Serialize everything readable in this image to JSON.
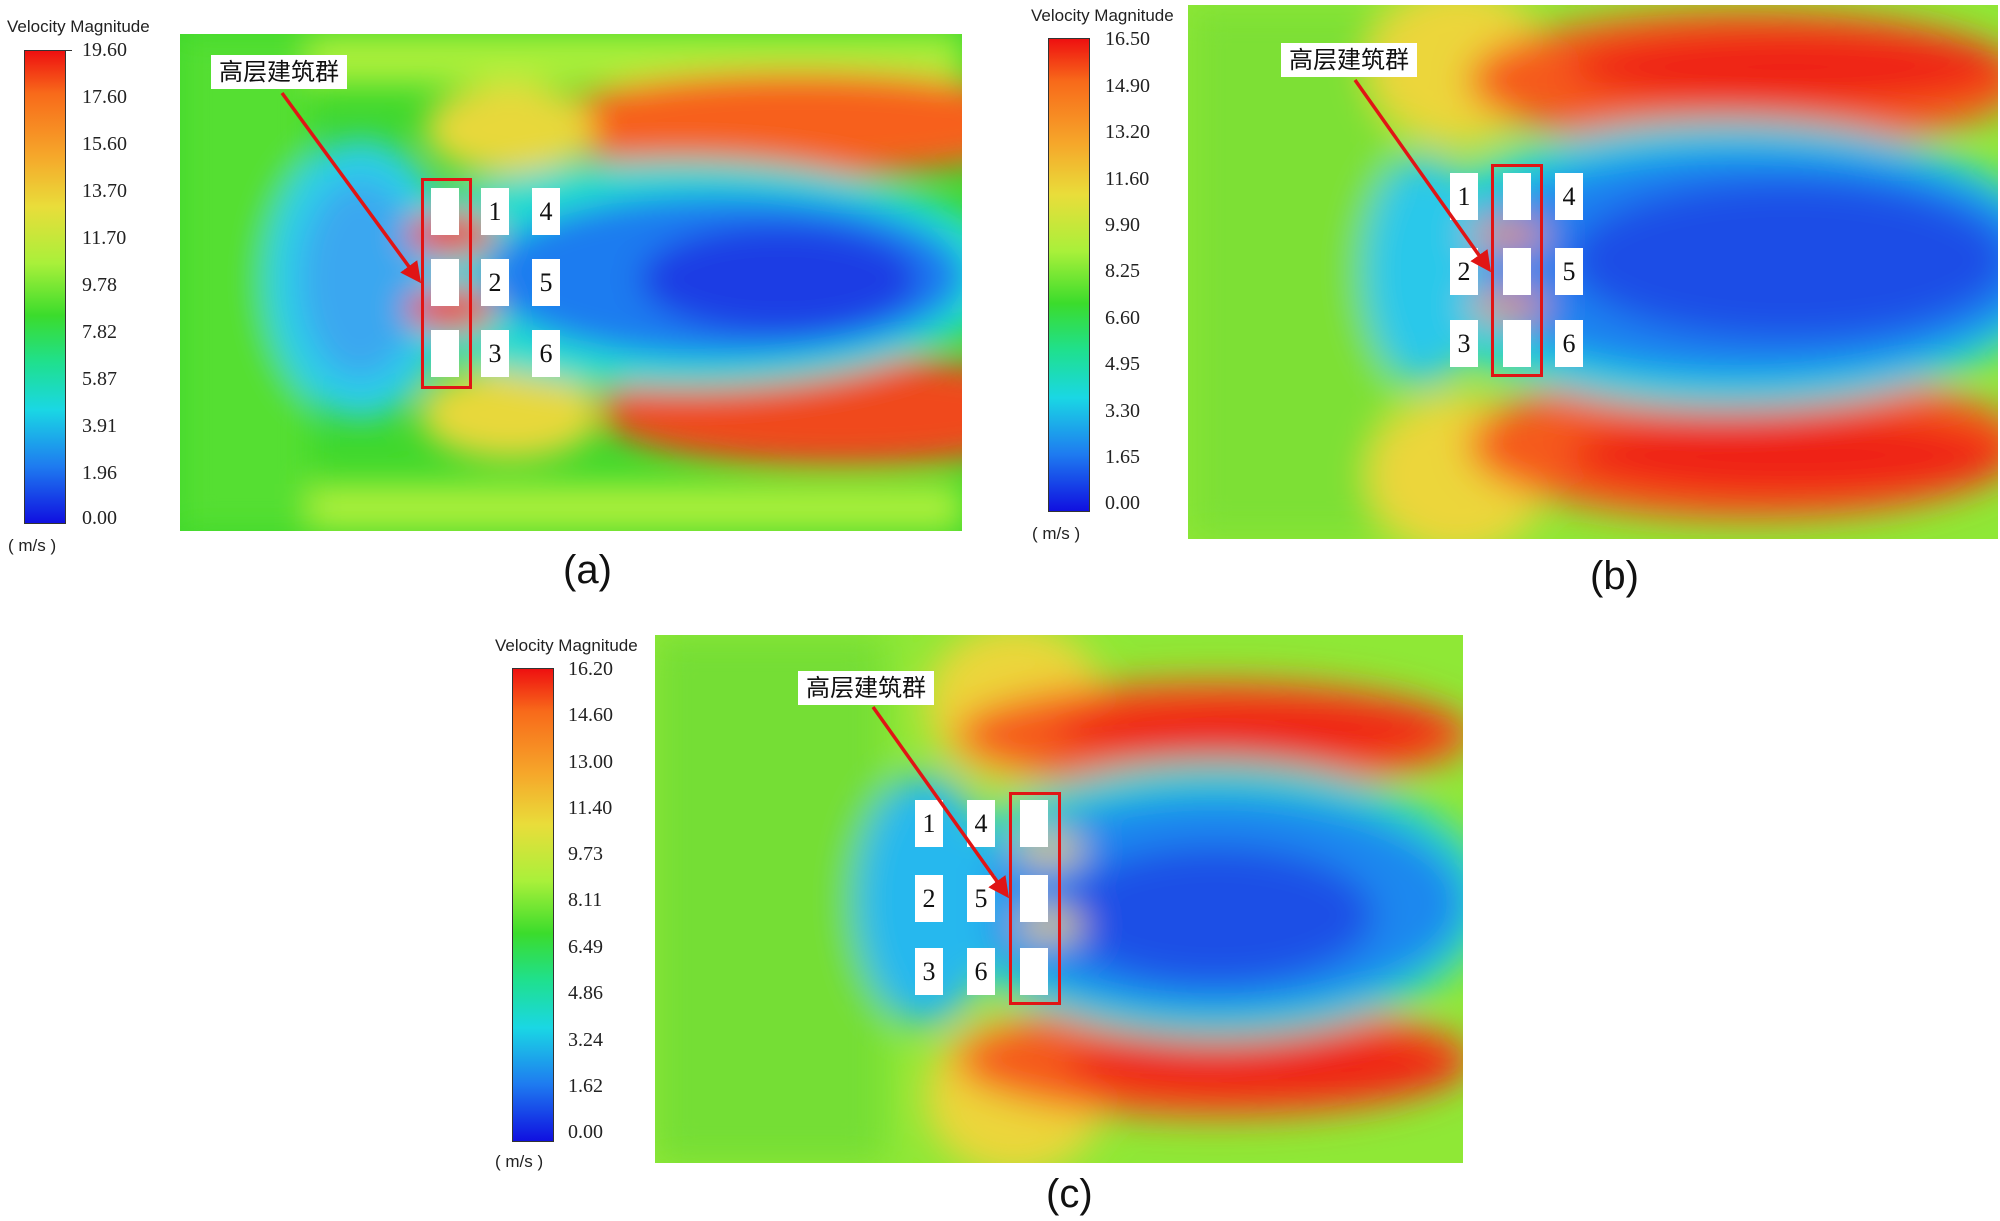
{
  "colors": {
    "high": "#ee1010",
    "mid": "#a9f03a",
    "low": "#1010e0",
    "annotation": "#e01515"
  },
  "panels": [
    {
      "id": "a",
      "caption": "(a)",
      "legend": {
        "title": "Velocity Magnitude",
        "unit": "( m/s )",
        "ticks": [
          "19.60",
          "17.60",
          "15.60",
          "13.70",
          "11.70",
          "9.78",
          "7.82",
          "5.87",
          "3.91",
          "1.96",
          "0.00"
        ]
      },
      "annotation": "高层建筑群",
      "buildings": [
        "",
        "1",
        "4",
        "",
        "2",
        "5",
        "",
        "3",
        "6"
      ]
    },
    {
      "id": "b",
      "caption": "(b)",
      "legend": {
        "title": "Velocity Magnitude",
        "unit": "( m/s )",
        "ticks": [
          "16.50",
          "14.90",
          "13.20",
          "11.60",
          "9.90",
          "8.25",
          "6.60",
          "4.95",
          "3.30",
          "1.65",
          "0.00"
        ]
      },
      "annotation": "高层建筑群",
      "buildings": [
        "1",
        "",
        "4",
        "2",
        "",
        "5",
        "3",
        "",
        "6"
      ]
    },
    {
      "id": "c",
      "caption": "(c)",
      "legend": {
        "title": "Velocity Magnitude",
        "unit": "( m/s )",
        "ticks": [
          "16.20",
          "14.60",
          "13.00",
          "11.40",
          "9.73",
          "8.11",
          "6.49",
          "4.86",
          "3.24",
          "1.62",
          "0.00"
        ]
      },
      "annotation": "高层建筑群",
      "buildings": [
        "1",
        "4",
        "",
        "2",
        "5",
        "",
        "3",
        "6",
        ""
      ]
    }
  ]
}
